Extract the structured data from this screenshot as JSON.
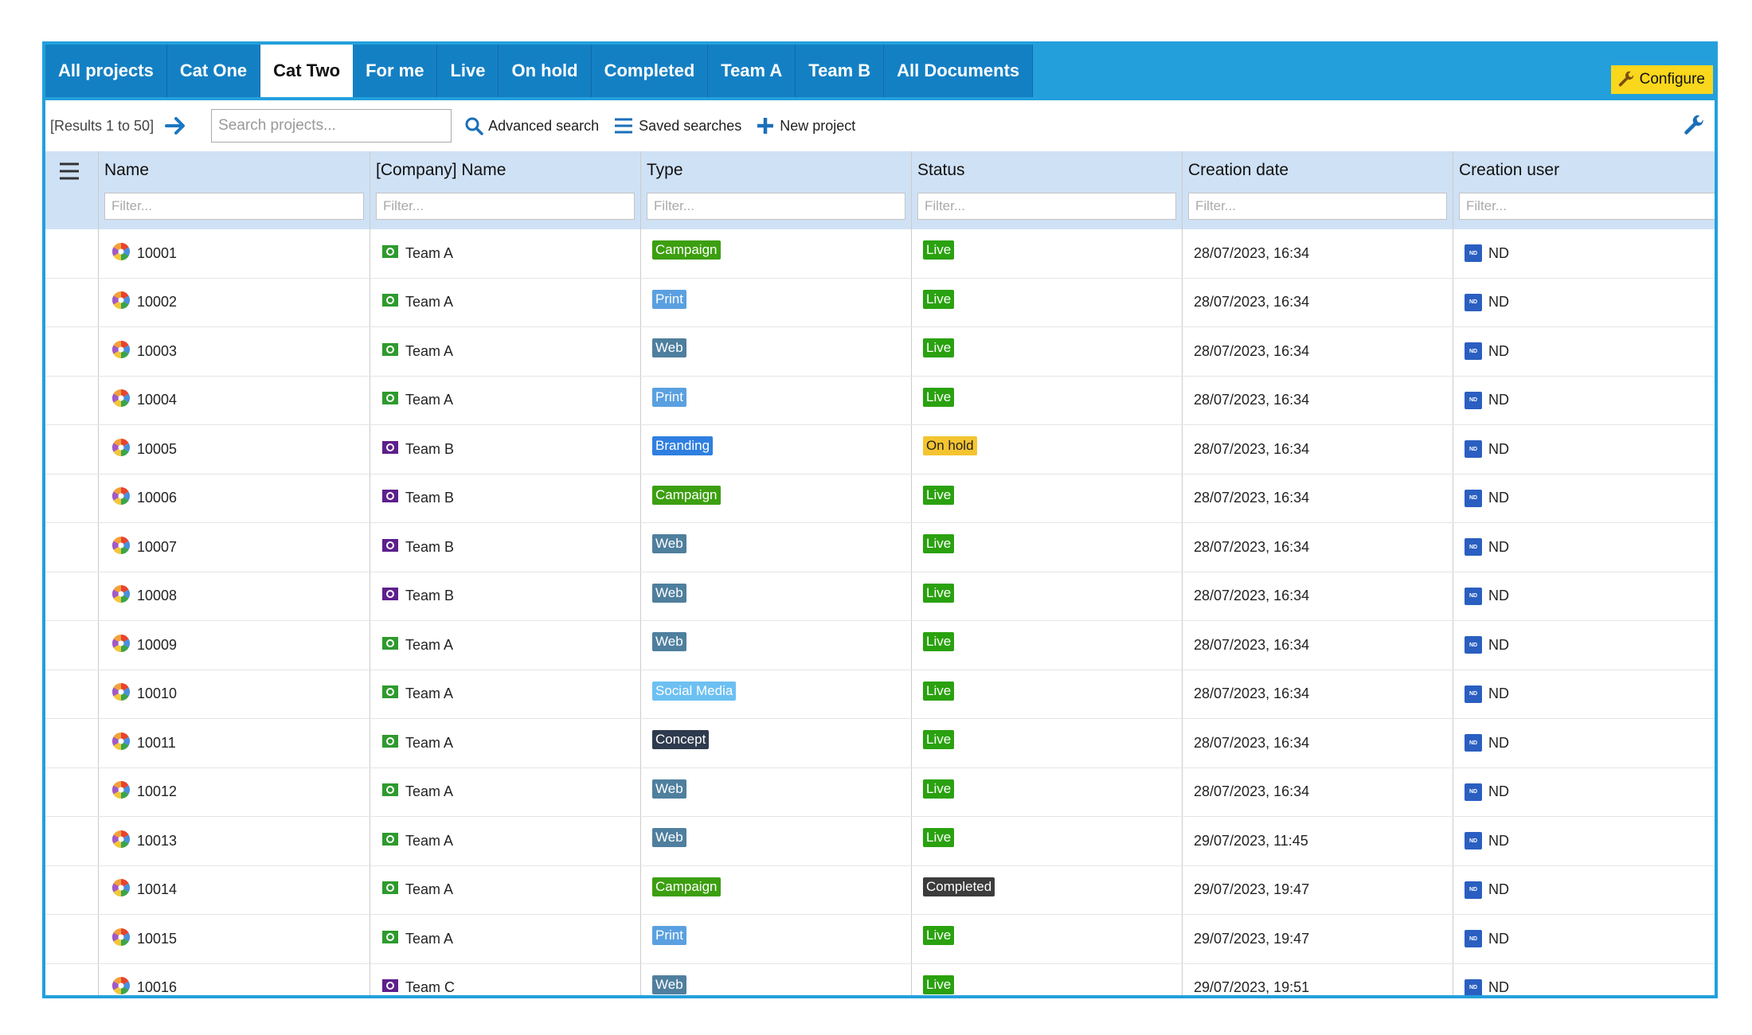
{
  "tabs": [
    {
      "label": "All projects",
      "active": false
    },
    {
      "label": "Cat One",
      "active": false
    },
    {
      "label": "Cat Two",
      "active": true
    },
    {
      "label": "For me",
      "active": false
    },
    {
      "label": "Live",
      "active": false
    },
    {
      "label": "On hold",
      "active": false
    },
    {
      "label": "Completed",
      "active": false
    },
    {
      "label": "Team A",
      "active": false
    },
    {
      "label": "Team B",
      "active": false
    },
    {
      "label": "All Documents",
      "active": false
    }
  ],
  "configure_label": "Configure",
  "toolbar": {
    "results": "[Results 1 to 50]",
    "search_placeholder": "Search projects...",
    "advanced_search": "Advanced search",
    "saved_searches": "Saved searches",
    "new_project": "New project"
  },
  "columns": [
    {
      "label": "Name",
      "filter_placeholder": "Filter..."
    },
    {
      "label": "[Company] Name",
      "filter_placeholder": "Filter..."
    },
    {
      "label": "Type",
      "filter_placeholder": "Filter..."
    },
    {
      "label": "Status",
      "filter_placeholder": "Filter..."
    },
    {
      "label": "Creation date",
      "filter_placeholder": "Filter..."
    },
    {
      "label": "Creation user",
      "filter_placeholder": "Filter..."
    }
  ],
  "type_colors": {
    "Campaign": "#3c9f0f",
    "Print": "#5aa0e0",
    "Web": "#4f7f9e",
    "Branding": "#2f7fe0",
    "Social Media": "#6cc0f2",
    "Concept": "#2e3b4e"
  },
  "status_colors": {
    "Live": "#2aa10f",
    "On hold": "#f4c430",
    "Completed": "#3c3c3c"
  },
  "team_colors": {
    "Team A": "#2e9a2e",
    "Team B": "#5e1f8c",
    "Team C": "#5e1f8c"
  },
  "rows": [
    {
      "name": "10001",
      "company": "Team A",
      "type": "Campaign",
      "status": "Live",
      "date": "28/07/2023, 16:34",
      "user": "ND"
    },
    {
      "name": "10002",
      "company": "Team A",
      "type": "Print",
      "status": "Live",
      "date": "28/07/2023, 16:34",
      "user": "ND"
    },
    {
      "name": "10003",
      "company": "Team A",
      "type": "Web",
      "status": "Live",
      "date": "28/07/2023, 16:34",
      "user": "ND"
    },
    {
      "name": "10004",
      "company": "Team A",
      "type": "Print",
      "status": "Live",
      "date": "28/07/2023, 16:34",
      "user": "ND"
    },
    {
      "name": "10005",
      "company": "Team B",
      "type": "Branding",
      "status": "On hold",
      "date": "28/07/2023, 16:34",
      "user": "ND"
    },
    {
      "name": "10006",
      "company": "Team B",
      "type": "Campaign",
      "status": "Live",
      "date": "28/07/2023, 16:34",
      "user": "ND"
    },
    {
      "name": "10007",
      "company": "Team B",
      "type": "Web",
      "status": "Live",
      "date": "28/07/2023, 16:34",
      "user": "ND"
    },
    {
      "name": "10008",
      "company": "Team B",
      "type": "Web",
      "status": "Live",
      "date": "28/07/2023, 16:34",
      "user": "ND"
    },
    {
      "name": "10009",
      "company": "Team A",
      "type": "Web",
      "status": "Live",
      "date": "28/07/2023, 16:34",
      "user": "ND"
    },
    {
      "name": "10010",
      "company": "Team A",
      "type": "Social Media",
      "status": "Live",
      "date": "28/07/2023, 16:34",
      "user": "ND"
    },
    {
      "name": "10011",
      "company": "Team A",
      "type": "Concept",
      "status": "Live",
      "date": "28/07/2023, 16:34",
      "user": "ND"
    },
    {
      "name": "10012",
      "company": "Team A",
      "type": "Web",
      "status": "Live",
      "date": "28/07/2023, 16:34",
      "user": "ND"
    },
    {
      "name": "10013",
      "company": "Team A",
      "type": "Web",
      "status": "Live",
      "date": "29/07/2023, 11:45",
      "user": "ND"
    },
    {
      "name": "10014",
      "company": "Team A",
      "type": "Campaign",
      "status": "Completed",
      "date": "29/07/2023, 19:47",
      "user": "ND"
    },
    {
      "name": "10015",
      "company": "Team A",
      "type": "Print",
      "status": "Live",
      "date": "29/07/2023, 19:47",
      "user": "ND"
    },
    {
      "name": "10016",
      "company": "Team C",
      "type": "Web",
      "status": "Live",
      "date": "29/07/2023, 19:51",
      "user": "ND"
    }
  ]
}
